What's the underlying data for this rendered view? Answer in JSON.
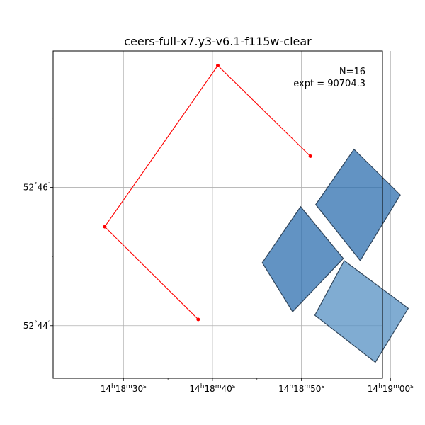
{
  "chart_data": {
    "type": "scatter",
    "title": "ceers-full-x7.y3-v6.1-f115w-clear",
    "xlabel": "",
    "ylabel": "",
    "grid": true,
    "x_axis": {
      "units": "RA offset (s of time, relative to 14h18m30s)",
      "range": [
        -7.9,
        29.1
      ],
      "ticks": [
        {
          "value": 0,
          "label_parts": [
            "14",
            "h",
            "18",
            "m",
            "30",
            "s"
          ]
        },
        {
          "value": 10,
          "label_parts": [
            "14",
            "h",
            "18",
            "m",
            "40",
            "s"
          ]
        },
        {
          "value": 20,
          "label_parts": [
            "14",
            "h",
            "18",
            "m",
            "50",
            "s"
          ]
        },
        {
          "value": 30,
          "label_parts": [
            "14",
            "h",
            "19",
            "m",
            "00",
            "s"
          ]
        }
      ]
    },
    "y_axis": {
      "units": "Dec (arcmin past 52°)",
      "range": [
        43.24,
        47.97
      ],
      "ticks": [
        {
          "value": 44,
          "label_parts": [
            "52",
            "°",
            "44",
            "′"
          ]
        },
        {
          "value": 46,
          "label_parts": [
            "52",
            "°",
            "46",
            "′"
          ]
        }
      ]
    },
    "annotations": {
      "n": "N=16",
      "expt": "expt = 90704.3"
    },
    "path": {
      "color": "#ff0000",
      "points": [
        [
          21.0,
          46.45
        ],
        [
          10.6,
          47.76
        ],
        [
          -2.1,
          45.43
        ],
        [
          8.4,
          44.09
        ]
      ]
    },
    "footprints": [
      {
        "color": "#2e6faf",
        "opacity": 0.75,
        "polygon": [
          [
            25.9,
            46.55
          ],
          [
            31.1,
            45.89
          ],
          [
            26.6,
            44.94
          ],
          [
            21.6,
            45.75
          ]
        ]
      },
      {
        "color": "#2e6faf",
        "opacity": 0.75,
        "polygon": [
          [
            19.9,
            45.72
          ],
          [
            24.7,
            44.97
          ],
          [
            19.0,
            44.2
          ],
          [
            15.6,
            44.91
          ]
        ]
      },
      {
        "color": "#5590c3",
        "opacity": 0.75,
        "polygon": [
          [
            24.8,
            44.94
          ],
          [
            32.0,
            44.25
          ],
          [
            28.3,
            43.47
          ],
          [
            21.5,
            44.15
          ]
        ]
      }
    ]
  }
}
